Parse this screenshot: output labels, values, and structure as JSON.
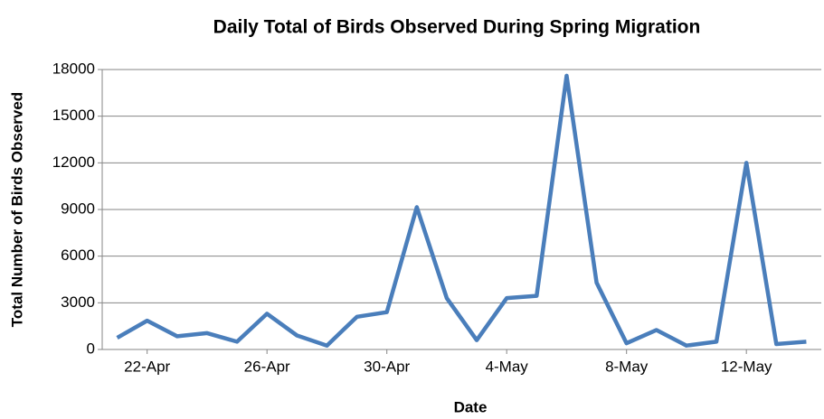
{
  "chart_data": {
    "type": "line",
    "title": "Daily Total of Birds Observed During Spring Migration",
    "x_label": "Date",
    "y_label": "Total Number of Birds Observed",
    "categories": [
      null,
      "22-Apr",
      null,
      null,
      null,
      "26-Apr",
      null,
      null,
      null,
      "30-Apr",
      null,
      null,
      null,
      "4-May",
      null,
      null,
      null,
      "8-May",
      null,
      null,
      null,
      "12-May",
      null,
      null
    ],
    "series": [
      {
        "name": "Total",
        "color": "#4a7ebb",
        "values": [
          750,
          1850,
          850,
          1050,
          500,
          2300,
          900,
          250,
          2100,
          2400,
          9150,
          3300,
          600,
          3300,
          3450,
          17600,
          4300,
          400,
          1250,
          250,
          500,
          12000,
          350,
          500
        ]
      }
    ],
    "ylim": [
      0,
      18000
    ],
    "yticks": [
      0,
      3000,
      6000,
      9000,
      12000,
      15000,
      18000
    ],
    "grid": true
  }
}
